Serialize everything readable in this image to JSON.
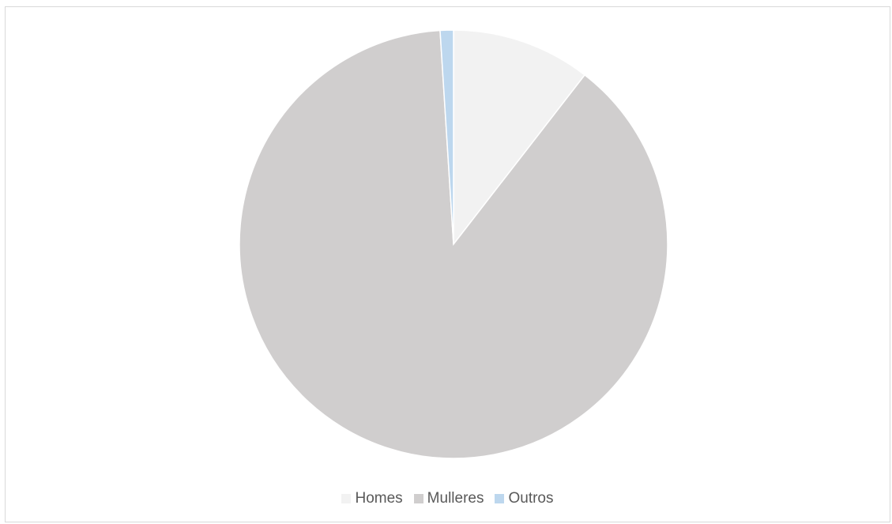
{
  "chart_data": {
    "type": "pie",
    "title": "",
    "categories": [
      "Homes",
      "Mulleres",
      "Outros"
    ],
    "values": [
      10.5,
      88.5,
      1.0
    ],
    "value_unit": "percent",
    "colors": [
      "#f2f2f2",
      "#d0cece",
      "#bdd7ee"
    ],
    "start_angle_deg": 0,
    "direction": "clockwise",
    "legend_position": "bottom"
  }
}
